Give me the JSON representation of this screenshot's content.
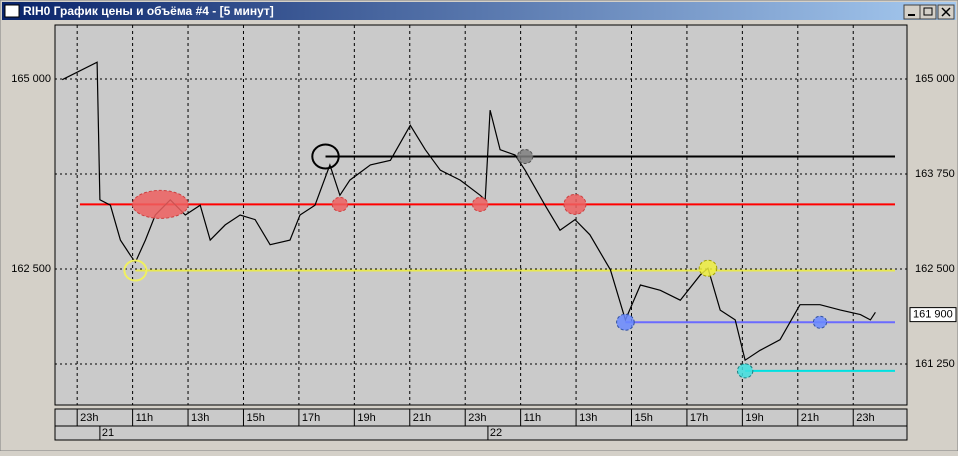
{
  "window": {
    "title": "RIH0 График цены и объёма #4 - [5 минут]"
  },
  "chart_data": {
    "type": "line",
    "x": [
      -0.27,
      0.36,
      0.41,
      0.6,
      0.78,
      0.96,
      1.05,
      1.23,
      1.41,
      1.68,
      1.95,
      2.22,
      2.4,
      2.67,
      2.94,
      3.21,
      3.48,
      3.84,
      4.02,
      4.29,
      4.56,
      4.74,
      4.92,
      5.29,
      5.65,
      6.01,
      6.28,
      6.55,
      6.91,
      7.27,
      7.36,
      7.45,
      7.63,
      7.9,
      8.08,
      8.44,
      8.71,
      8.98,
      9.25,
      9.62,
      9.89,
      10.16,
      10.52,
      10.88,
      11.24,
      11.38,
      11.6,
      11.87,
      12.05,
      12.32,
      12.68,
      13.04,
      13.4,
      13.77,
      14.13,
      14.31,
      14.4
    ],
    "series": [
      {
        "color": "#000000",
        "values": [
          164990,
          165220,
          163410,
          163340,
          162880,
          162680,
          162590,
          162880,
          163210,
          163410,
          163210,
          163340,
          162880,
          163080,
          163210,
          163150,
          162820,
          162880,
          163210,
          163340,
          163870,
          163470,
          163670,
          163870,
          163930,
          164390,
          164070,
          163800,
          163670,
          163470,
          163410,
          164590,
          164070,
          164000,
          163800,
          163340,
          163010,
          163150,
          162950,
          162490,
          161830,
          162290,
          162220,
          162090,
          162420,
          162510,
          161960,
          161830,
          161300,
          161430,
          161570,
          162030,
          162030,
          161960,
          161900,
          161830,
          161930
        ]
      }
    ],
    "xlim": [
      -0.4,
      14.97
    ],
    "ylim": [
      160711,
      165710
    ],
    "xticks": [
      {
        "value": 0,
        "label": "23h"
      },
      {
        "value": 1,
        "label": "11h"
      },
      {
        "value": 2,
        "label": "13h"
      },
      {
        "value": 3,
        "label": "15h"
      },
      {
        "value": 4,
        "label": "17h"
      },
      {
        "value": 5,
        "label": "19h"
      },
      {
        "value": 6,
        "label": "21h"
      },
      {
        "value": 7,
        "label": "23h"
      },
      {
        "value": 8,
        "label": "11h"
      },
      {
        "value": 9,
        "label": "13h"
      },
      {
        "value": 10,
        "label": "15h"
      },
      {
        "value": 11,
        "label": "17h"
      },
      {
        "value": 12,
        "label": "19h"
      },
      {
        "value": 13,
        "label": "21h"
      },
      {
        "value": 14,
        "label": "23h"
      }
    ],
    "dates": [
      {
        "value": 0.41,
        "label": "21"
      },
      {
        "value": 7.41,
        "label": "22"
      }
    ],
    "yticks": [
      {
        "value": 165000,
        "label": "165 000"
      },
      {
        "value": 163750,
        "label": "163 750"
      },
      {
        "value": 162500,
        "label": "162 500"
      },
      {
        "value": 161250,
        "label": "161 250"
      }
    ],
    "last_price": {
      "value": 161900,
      "label": "161 900"
    },
    "levels": [
      {
        "value": 163980,
        "color": "#000000",
        "from": 4.48
      },
      {
        "value": 163350,
        "color": "#ff0000",
        "from": 0.05
      },
      {
        "value": 162480,
        "color": "#e8e850",
        "from": 1.05
      },
      {
        "value": 161800,
        "color": "#6a6aff",
        "from": 9.89
      },
      {
        "value": 161160,
        "color": "#00e0e0",
        "from": 12.05
      }
    ],
    "markers": [
      {
        "x": 4.48,
        "y": 163980,
        "color": "none",
        "stroke": "#000000",
        "r": 12
      },
      {
        "x": 1.5,
        "y": 163350,
        "color": "#ee6060",
        "stroke": "#cc4040",
        "r": 14
      },
      {
        "x": 4.74,
        "y": 163350,
        "color": "#ee6060",
        "stroke": "#cc4040",
        "r": 7
      },
      {
        "x": 7.27,
        "y": 163350,
        "color": "#ee6060",
        "stroke": "#cc4040",
        "r": 7
      },
      {
        "x": 8.98,
        "y": 163350,
        "color": "#ee6060",
        "stroke": "#cc4040",
        "r": 10
      },
      {
        "x": 8.08,
        "y": 163980,
        "color": "#808080",
        "stroke": "#505050",
        "r": 7
      },
      {
        "x": 1.05,
        "y": 162480,
        "color": "none",
        "stroke": "#f0f060",
        "r": 10
      },
      {
        "x": 11.38,
        "y": 162510,
        "color": "#f0f040",
        "stroke": "#a0a000",
        "r": 8
      },
      {
        "x": 9.89,
        "y": 161800,
        "color": "#6a8aff",
        "stroke": "#3050a0",
        "r": 8
      },
      {
        "x": 13.4,
        "y": 161800,
        "color": "#6a8aff",
        "stroke": "#3050a0",
        "r": 6
      },
      {
        "x": 12.05,
        "y": 161160,
        "color": "#40e0e0",
        "stroke": "#208080",
        "r": 7
      }
    ]
  }
}
